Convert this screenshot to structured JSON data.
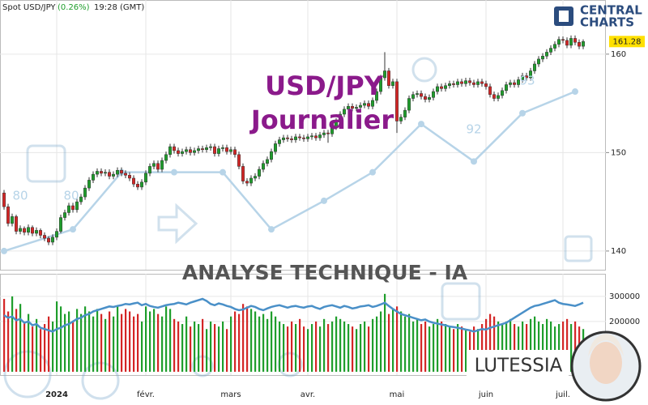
{
  "chart_data": {
    "type": "candlestick",
    "instrument": "Spot USD/JPY",
    "change": "(0.26%)",
    "time": "19:28 (GMT)",
    "title": "USD/JPY",
    "subtitle": "Journalier",
    "banner": "ANALYSE TECHNIQUE - IA",
    "brand": "LUTESSIA",
    "logo": [
      "CENTRAL",
      "CHARTS"
    ],
    "ylim": [
      138.1,
      165.5
    ],
    "yticks": [
      140,
      150,
      160
    ],
    "volume_ylim": [
      -13000,
      390000
    ],
    "volume_yticks": [
      200000,
      300000
    ],
    "xlim": [
      -1,
      149
    ],
    "xticks": [
      {
        "value": 13,
        "label": "2024"
      },
      {
        "value": 35,
        "label": "févr."
      },
      {
        "value": 56,
        "label": "mars"
      },
      {
        "value": 75,
        "label": "avr."
      },
      {
        "value": 97,
        "label": "mai"
      },
      {
        "value": 119,
        "label": "juin"
      },
      {
        "value": 138,
        "label": "juil."
      }
    ],
    "up_color": "#1f9e2c",
    "down_color": "#d42626",
    "volume_line_color": "#4a90c8",
    "ai_color": "#b7d4e8",
    "grid": true,
    "ohlc": [
      [
        145.9,
        146.2,
        144.2,
        144.5
      ],
      [
        144.5,
        144.8,
        142.5,
        142.8
      ],
      [
        142.8,
        143.8,
        142.5,
        143.5
      ],
      [
        143.5,
        143.7,
        141.7,
        142.0
      ],
      [
        142.0,
        142.6,
        141.7,
        142.3
      ],
      [
        142.3,
        142.5,
        141.6,
        141.9
      ],
      [
        141.9,
        142.7,
        141.6,
        142.4
      ],
      [
        142.4,
        142.6,
        141.5,
        141.8
      ],
      [
        141.8,
        142.4,
        141.5,
        142.1
      ],
      [
        142.1,
        142.3,
        141.3,
        141.6
      ],
      [
        141.6,
        141.9,
        141.0,
        141.3
      ],
      [
        141.3,
        141.5,
        140.6,
        140.9
      ],
      [
        140.9,
        141.7,
        140.6,
        141.4
      ],
      [
        141.4,
        142.3,
        141.1,
        142.0
      ],
      [
        142.0,
        143.7,
        141.8,
        143.4
      ],
      [
        143.4,
        144.2,
        143.1,
        143.9
      ],
      [
        143.9,
        144.9,
        143.6,
        144.6
      ],
      [
        144.6,
        144.9,
        143.9,
        144.2
      ],
      [
        144.2,
        145.3,
        143.9,
        145.0
      ],
      [
        145.0,
        145.8,
        144.7,
        145.5
      ],
      [
        145.5,
        146.7,
        145.2,
        146.4
      ],
      [
        146.4,
        147.5,
        146.1,
        147.2
      ],
      [
        147.2,
        148.1,
        146.9,
        147.8
      ],
      [
        147.8,
        148.4,
        147.5,
        148.1
      ],
      [
        148.1,
        148.4,
        147.6,
        147.9
      ],
      [
        147.9,
        148.3,
        147.6,
        148.0
      ],
      [
        148.0,
        148.3,
        147.3,
        147.6
      ],
      [
        147.6,
        148.1,
        147.3,
        147.8
      ],
      [
        147.8,
        148.5,
        147.5,
        148.2
      ],
      [
        148.2,
        148.5,
        147.6,
        147.9
      ],
      [
        147.9,
        148.2,
        147.4,
        147.7
      ],
      [
        147.7,
        148.0,
        147.1,
        147.4
      ],
      [
        147.4,
        147.7,
        146.5,
        146.8
      ],
      [
        146.8,
        147.1,
        146.2,
        146.5
      ],
      [
        146.5,
        147.3,
        146.2,
        147.0
      ],
      [
        147.0,
        148.2,
        146.7,
        147.9
      ],
      [
        147.9,
        148.9,
        147.6,
        148.6
      ],
      [
        148.6,
        149.2,
        148.3,
        148.9
      ],
      [
        148.9,
        149.2,
        148.0,
        148.3
      ],
      [
        148.3,
        149.5,
        148.0,
        149.2
      ],
      [
        149.2,
        150.1,
        148.9,
        149.8
      ],
      [
        149.8,
        150.9,
        149.5,
        150.6
      ],
      [
        150.6,
        150.9,
        149.9,
        150.2
      ],
      [
        150.2,
        150.5,
        149.6,
        149.9
      ],
      [
        149.9,
        150.4,
        149.6,
        150.1
      ],
      [
        150.1,
        150.6,
        149.8,
        150.3
      ],
      [
        150.3,
        150.6,
        149.7,
        150.0
      ],
      [
        150.0,
        150.5,
        149.7,
        150.2
      ],
      [
        150.2,
        150.7,
        149.9,
        150.4
      ],
      [
        150.4,
        150.7,
        150.0,
        150.3
      ],
      [
        150.3,
        150.8,
        150.0,
        150.5
      ],
      [
        150.5,
        150.9,
        150.2,
        150.6
      ],
      [
        150.6,
        150.9,
        149.6,
        149.9
      ],
      [
        149.9,
        150.7,
        149.6,
        150.4
      ],
      [
        150.4,
        150.8,
        150.1,
        150.5
      ],
      [
        150.5,
        150.8,
        149.8,
        150.1
      ],
      [
        150.1,
        150.6,
        149.8,
        150.3
      ],
      [
        150.3,
        150.6,
        149.5,
        149.8
      ],
      [
        149.8,
        150.1,
        148.3,
        148.6
      ],
      [
        148.6,
        148.9,
        146.8,
        147.1
      ],
      [
        147.1,
        147.4,
        146.6,
        146.9
      ],
      [
        146.9,
        147.7,
        146.6,
        147.4
      ],
      [
        147.4,
        147.9,
        147.1,
        147.6
      ],
      [
        147.6,
        148.6,
        147.3,
        148.3
      ],
      [
        148.3,
        149.2,
        148.0,
        148.9
      ],
      [
        148.9,
        149.6,
        148.6,
        149.3
      ],
      [
        149.3,
        150.4,
        149.0,
        150.1
      ],
      [
        150.1,
        151.2,
        149.8,
        150.9
      ],
      [
        150.9,
        151.6,
        150.6,
        151.3
      ],
      [
        151.3,
        151.8,
        151.0,
        151.5
      ],
      [
        151.5,
        151.8,
        151.1,
        151.4
      ],
      [
        151.4,
        151.7,
        151.0,
        151.3
      ],
      [
        151.3,
        151.9,
        151.0,
        151.6
      ],
      [
        151.6,
        151.9,
        151.2,
        151.5
      ],
      [
        151.5,
        151.8,
        151.1,
        151.4
      ],
      [
        151.4,
        151.9,
        151.1,
        151.6
      ],
      [
        151.6,
        152.0,
        151.3,
        151.7
      ],
      [
        151.7,
        152.0,
        151.2,
        151.5
      ],
      [
        151.5,
        152.1,
        151.2,
        151.8
      ],
      [
        151.8,
        152.3,
        151.5,
        152.0
      ],
      [
        152.0,
        152.3,
        151.0,
        151.9
      ],
      [
        151.9,
        152.9,
        151.6,
        152.6
      ],
      [
        152.6,
        153.5,
        152.3,
        153.2
      ],
      [
        153.2,
        154.2,
        152.9,
        153.9
      ],
      [
        153.9,
        154.7,
        153.6,
        154.4
      ],
      [
        154.4,
        155.0,
        154.1,
        154.7
      ],
      [
        154.7,
        155.0,
        154.2,
        154.5
      ],
      [
        154.5,
        154.9,
        154.2,
        154.6
      ],
      [
        154.6,
        155.1,
        154.3,
        154.8
      ],
      [
        154.8,
        155.3,
        154.5,
        155.0
      ],
      [
        155.0,
        155.3,
        154.4,
        154.7
      ],
      [
        154.7,
        155.6,
        154.4,
        155.3
      ],
      [
        155.3,
        156.5,
        155.0,
        156.2
      ],
      [
        156.2,
        157.9,
        155.9,
        157.6
      ],
      [
        157.6,
        160.2,
        157.3,
        158.3
      ],
      [
        158.3,
        158.6,
        156.5,
        156.8
      ],
      [
        156.8,
        157.5,
        156.5,
        157.2
      ],
      [
        157.2,
        157.5,
        152.0,
        153.2
      ],
      [
        153.2,
        153.9,
        152.9,
        153.6
      ],
      [
        153.6,
        154.6,
        153.3,
        154.3
      ],
      [
        154.3,
        155.8,
        154.0,
        155.5
      ],
      [
        155.5,
        156.2,
        155.2,
        155.9
      ],
      [
        155.9,
        156.3,
        155.6,
        156.0
      ],
      [
        156.0,
        156.3,
        155.4,
        155.7
      ],
      [
        155.7,
        156.0,
        155.1,
        155.4
      ],
      [
        155.4,
        155.9,
        155.1,
        155.6
      ],
      [
        155.6,
        156.5,
        155.3,
        156.2
      ],
      [
        156.2,
        157.0,
        155.9,
        156.7
      ],
      [
        156.7,
        157.0,
        156.2,
        156.5
      ],
      [
        156.5,
        157.1,
        156.2,
        156.8
      ],
      [
        156.8,
        157.3,
        156.5,
        157.0
      ],
      [
        157.0,
        157.3,
        156.6,
        156.9
      ],
      [
        156.9,
        157.5,
        156.6,
        157.2
      ],
      [
        157.2,
        157.5,
        156.7,
        157.0
      ],
      [
        157.0,
        157.6,
        156.7,
        157.3
      ],
      [
        157.3,
        157.6,
        156.8,
        157.1
      ],
      [
        157.1,
        157.4,
        156.6,
        156.9
      ],
      [
        156.9,
        157.5,
        156.6,
        157.2
      ],
      [
        157.2,
        157.5,
        156.7,
        157.0
      ],
      [
        157.0,
        157.3,
        156.4,
        156.7
      ],
      [
        156.7,
        157.0,
        155.6,
        155.9
      ],
      [
        155.9,
        156.2,
        155.2,
        155.5
      ],
      [
        155.5,
        156.1,
        155.2,
        155.8
      ],
      [
        155.8,
        156.6,
        155.5,
        156.3
      ],
      [
        156.3,
        157.2,
        156.0,
        156.9
      ],
      [
        156.9,
        157.4,
        156.6,
        157.1
      ],
      [
        157.1,
        157.4,
        156.6,
        156.9
      ],
      [
        156.9,
        157.7,
        156.6,
        157.4
      ],
      [
        157.4,
        158.1,
        157.1,
        157.8
      ],
      [
        157.8,
        158.1,
        157.3,
        157.6
      ],
      [
        157.6,
        158.6,
        157.3,
        158.3
      ],
      [
        158.3,
        159.3,
        158.0,
        159.0
      ],
      [
        159.0,
        159.8,
        158.7,
        159.5
      ],
      [
        159.5,
        160.1,
        159.2,
        159.8
      ],
      [
        159.8,
        160.5,
        159.5,
        160.2
      ],
      [
        160.2,
        160.9,
        159.9,
        160.6
      ],
      [
        160.6,
        161.3,
        160.3,
        161.0
      ],
      [
        161.0,
        161.8,
        160.7,
        161.5
      ],
      [
        161.5,
        161.8,
        161.1,
        161.4
      ],
      [
        161.4,
        161.7,
        160.6,
        160.9
      ],
      [
        160.9,
        161.9,
        160.6,
        161.6
      ],
      [
        161.6,
        161.9,
        160.9,
        161.2
      ],
      [
        161.2,
        161.5,
        160.5,
        160.8
      ],
      [
        160.8,
        161.5,
        160.5,
        161.28
      ]
    ],
    "volume": [
      290000,
      240000,
      300000,
      250000,
      270000,
      200000,
      230000,
      180000,
      210000,
      170000,
      190000,
      220000,
      200000,
      280000,
      260000,
      230000,
      240000,
      200000,
      250000,
      230000,
      260000,
      240000,
      220000,
      250000,
      230000,
      210000,
      240000,
      220000,
      260000,
      230000,
      250000,
      240000,
      220000,
      230000,
      200000,
      260000,
      240000,
      250000,
      230000,
      220000,
      260000,
      250000,
      210000,
      200000,
      190000,
      220000,
      180000,
      200000,
      190000,
      210000,
      170000,
      200000,
      190000,
      180000,
      200000,
      170000,
      220000,
      240000,
      230000,
      270000,
      260000,
      250000,
      240000,
      220000,
      230000,
      210000,
      240000,
      220000,
      200000,
      190000,
      180000,
      200000,
      190000,
      210000,
      180000,
      170000,
      190000,
      200000,
      180000,
      210000,
      190000,
      200000,
      220000,
      210000,
      200000,
      190000,
      180000,
      170000,
      190000,
      200000,
      180000,
      210000,
      220000,
      240000,
      310000,
      230000,
      250000,
      260000,
      240000,
      220000,
      230000,
      200000,
      210000,
      190000,
      200000,
      180000,
      190000,
      210000,
      200000,
      190000,
      180000,
      170000,
      190000,
      180000,
      170000,
      160000,
      180000,
      170000,
      190000,
      210000,
      230000,
      220000,
      200000,
      190000,
      200000,
      210000,
      190000,
      180000,
      200000,
      190000,
      210000,
      220000,
      200000,
      190000,
      210000,
      200000,
      180000,
      190000,
      200000,
      210000,
      190000,
      200000,
      180000,
      170000
    ],
    "volume_line": [
      225000,
      215000,
      220000,
      205000,
      210000,
      195000,
      200000,
      185000,
      190000,
      175000,
      170000,
      165000,
      160000,
      170000,
      175000,
      185000,
      190000,
      200000,
      210000,
      215000,
      225000,
      230000,
      240000,
      245000,
      250000,
      255000,
      260000,
      258000,
      262000,
      265000,
      270000,
      268000,
      272000,
      275000,
      265000,
      270000,
      262000,
      258000,
      255000,
      260000,
      265000,
      268000,
      270000,
      275000,
      272000,
      268000,
      275000,
      280000,
      285000,
      290000,
      282000,
      270000,
      265000,
      272000,
      268000,
      262000,
      258000,
      250000,
      245000,
      248000,
      255000,
      262000,
      258000,
      250000,
      245000,
      252000,
      258000,
      262000,
      265000,
      260000,
      255000,
      260000,
      262000,
      258000,
      255000,
      260000,
      262000,
      255000,
      250000,
      258000,
      262000,
      265000,
      260000,
      255000,
      262000,
      258000,
      252000,
      255000,
      260000,
      262000,
      265000,
      258000,
      262000,
      268000,
      275000,
      262000,
      250000,
      240000,
      230000,
      225000,
      220000,
      215000,
      210000,
      205000,
      208000,
      200000,
      195000,
      192000,
      188000,
      185000,
      180000,
      178000,
      175000,
      172000,
      168000,
      165000,
      160000,
      165000,
      170000,
      168000,
      175000,
      180000,
      185000,
      190000,
      195000,
      205000,
      215000,
      225000,
      235000,
      245000,
      255000,
      262000,
      265000,
      270000,
      275000,
      280000,
      285000,
      275000,
      270000,
      268000,
      265000,
      262000,
      268000,
      275000
    ],
    "ai_line": {
      "x": [
        0,
        17,
        29,
        42,
        54,
        66,
        79,
        91,
        103,
        116,
        128,
        141
      ],
      "values": [
        140.0,
        142.2,
        148.0,
        148.0,
        148.0,
        142.2,
        145.1,
        148.0,
        152.9,
        149.1,
        154.0,
        156.2
      ]
    },
    "ai_labels": [
      "80",
      "80",
      "92",
      "93"
    ]
  }
}
